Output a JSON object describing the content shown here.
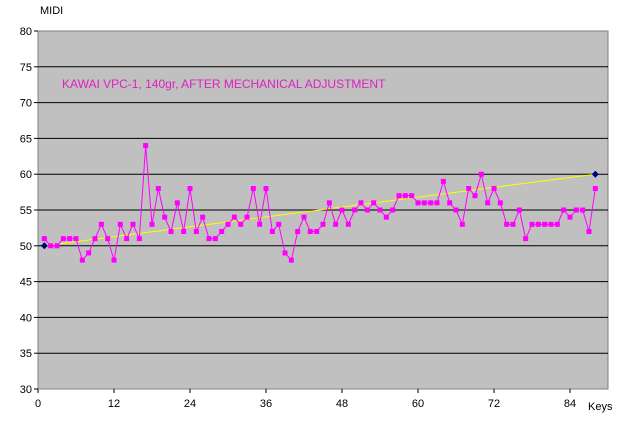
{
  "chart_data": {
    "type": "line",
    "annotation": "KAWAI VPC-1, 140gr, AFTER MECHANICAL ADJUSTMENT",
    "ylabel": "MIDI",
    "xlabel": "Keys",
    "ylim": [
      30,
      80
    ],
    "xlim": [
      0,
      90
    ],
    "yticks": [
      "30",
      "35",
      "40",
      "45",
      "50",
      "55",
      "60",
      "65",
      "70",
      "75",
      "80"
    ],
    "xticks": [
      "0",
      "12",
      "24",
      "36",
      "48",
      "60",
      "72",
      "84"
    ],
    "grid": "horizontal",
    "plot_background": "#c0c0c0",
    "series": [
      {
        "color": "#ff00ff",
        "marker": "square",
        "x": [
          1,
          2,
          3,
          4,
          5,
          6,
          7,
          8,
          9,
          10,
          11,
          12,
          13,
          14,
          15,
          16,
          17,
          18,
          19,
          20,
          21,
          22,
          23,
          24,
          25,
          26,
          27,
          28,
          29,
          30,
          31,
          32,
          33,
          34,
          35,
          36,
          37,
          38,
          39,
          40,
          41,
          42,
          43,
          44,
          45,
          46,
          47,
          48,
          49,
          50,
          51,
          52,
          53,
          54,
          55,
          56,
          57,
          58,
          59,
          60,
          61,
          62,
          63,
          64,
          65,
          66,
          67,
          68,
          69,
          70,
          71,
          72,
          73,
          74,
          75,
          76,
          77,
          78,
          79,
          80,
          81,
          82,
          83,
          84,
          85,
          86,
          87,
          88
        ],
        "values": [
          51,
          50,
          50,
          51,
          51,
          51,
          48,
          49,
          51,
          53,
          51,
          48,
          53,
          51,
          53,
          51,
          64,
          53,
          58,
          54,
          52,
          56,
          52,
          58,
          52,
          54,
          51,
          51,
          52,
          53,
          54,
          53,
          54,
          58,
          53,
          58,
          52,
          53,
          49,
          48,
          52,
          54,
          52,
          52,
          53,
          56,
          53,
          55,
          53,
          55,
          56,
          55,
          56,
          55,
          54,
          55,
          57,
          57,
          57,
          56,
          56,
          56,
          56,
          59,
          56,
          55,
          53,
          58,
          57,
          60,
          56,
          58,
          56,
          53,
          53,
          55,
          51,
          53,
          53,
          53,
          53,
          53,
          55,
          54,
          55,
          55,
          52,
          58
        ]
      },
      {
        "color": "#ffff00",
        "marker": "diamond",
        "marker_color": "#000080",
        "x": [
          1,
          88
        ],
        "values": [
          50,
          60
        ]
      }
    ]
  }
}
